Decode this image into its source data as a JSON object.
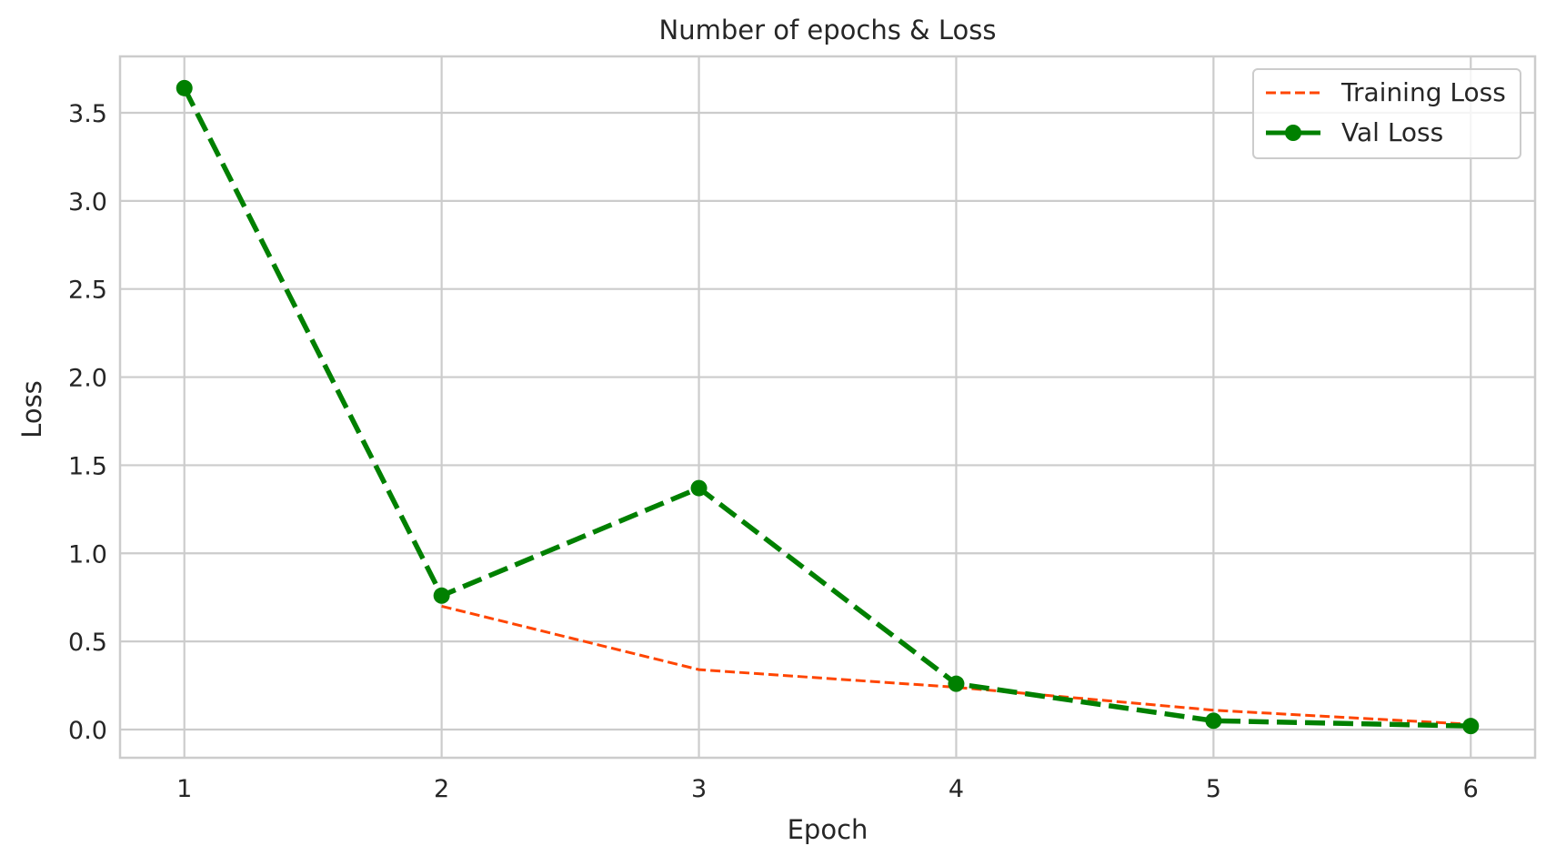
{
  "chart_data": {
    "type": "line",
    "title": "Number of epochs & Loss",
    "xlabel": "Epoch",
    "ylabel": "Loss",
    "x": [
      1,
      2,
      3,
      4,
      5,
      6
    ],
    "xlim": [
      0.75,
      6.25
    ],
    "ylim": [
      -0.16,
      3.82
    ],
    "xticks": [
      1,
      2,
      3,
      4,
      5,
      6
    ],
    "xtick_labels": [
      "1",
      "2",
      "3",
      "4",
      "5",
      "6"
    ],
    "yticks": [
      0.0,
      0.5,
      1.0,
      1.5,
      2.0,
      2.5,
      3.0,
      3.5
    ],
    "ytick_labels": [
      "0.0",
      "0.5",
      "1.0",
      "1.5",
      "2.0",
      "2.5",
      "3.0",
      "3.5"
    ],
    "grid": true,
    "legend_position": "top-right",
    "series": [
      {
        "name": "Training Loss",
        "values": [
          null,
          0.7,
          0.34,
          0.24,
          0.11,
          0.03
        ],
        "color": "#ff4500",
        "style": "dashed",
        "marker": "none"
      },
      {
        "name": "Val Loss",
        "values": [
          3.64,
          0.76,
          1.37,
          0.26,
          0.05,
          0.02
        ],
        "color": "#008000",
        "style": "dashed",
        "marker": "circle"
      }
    ]
  }
}
